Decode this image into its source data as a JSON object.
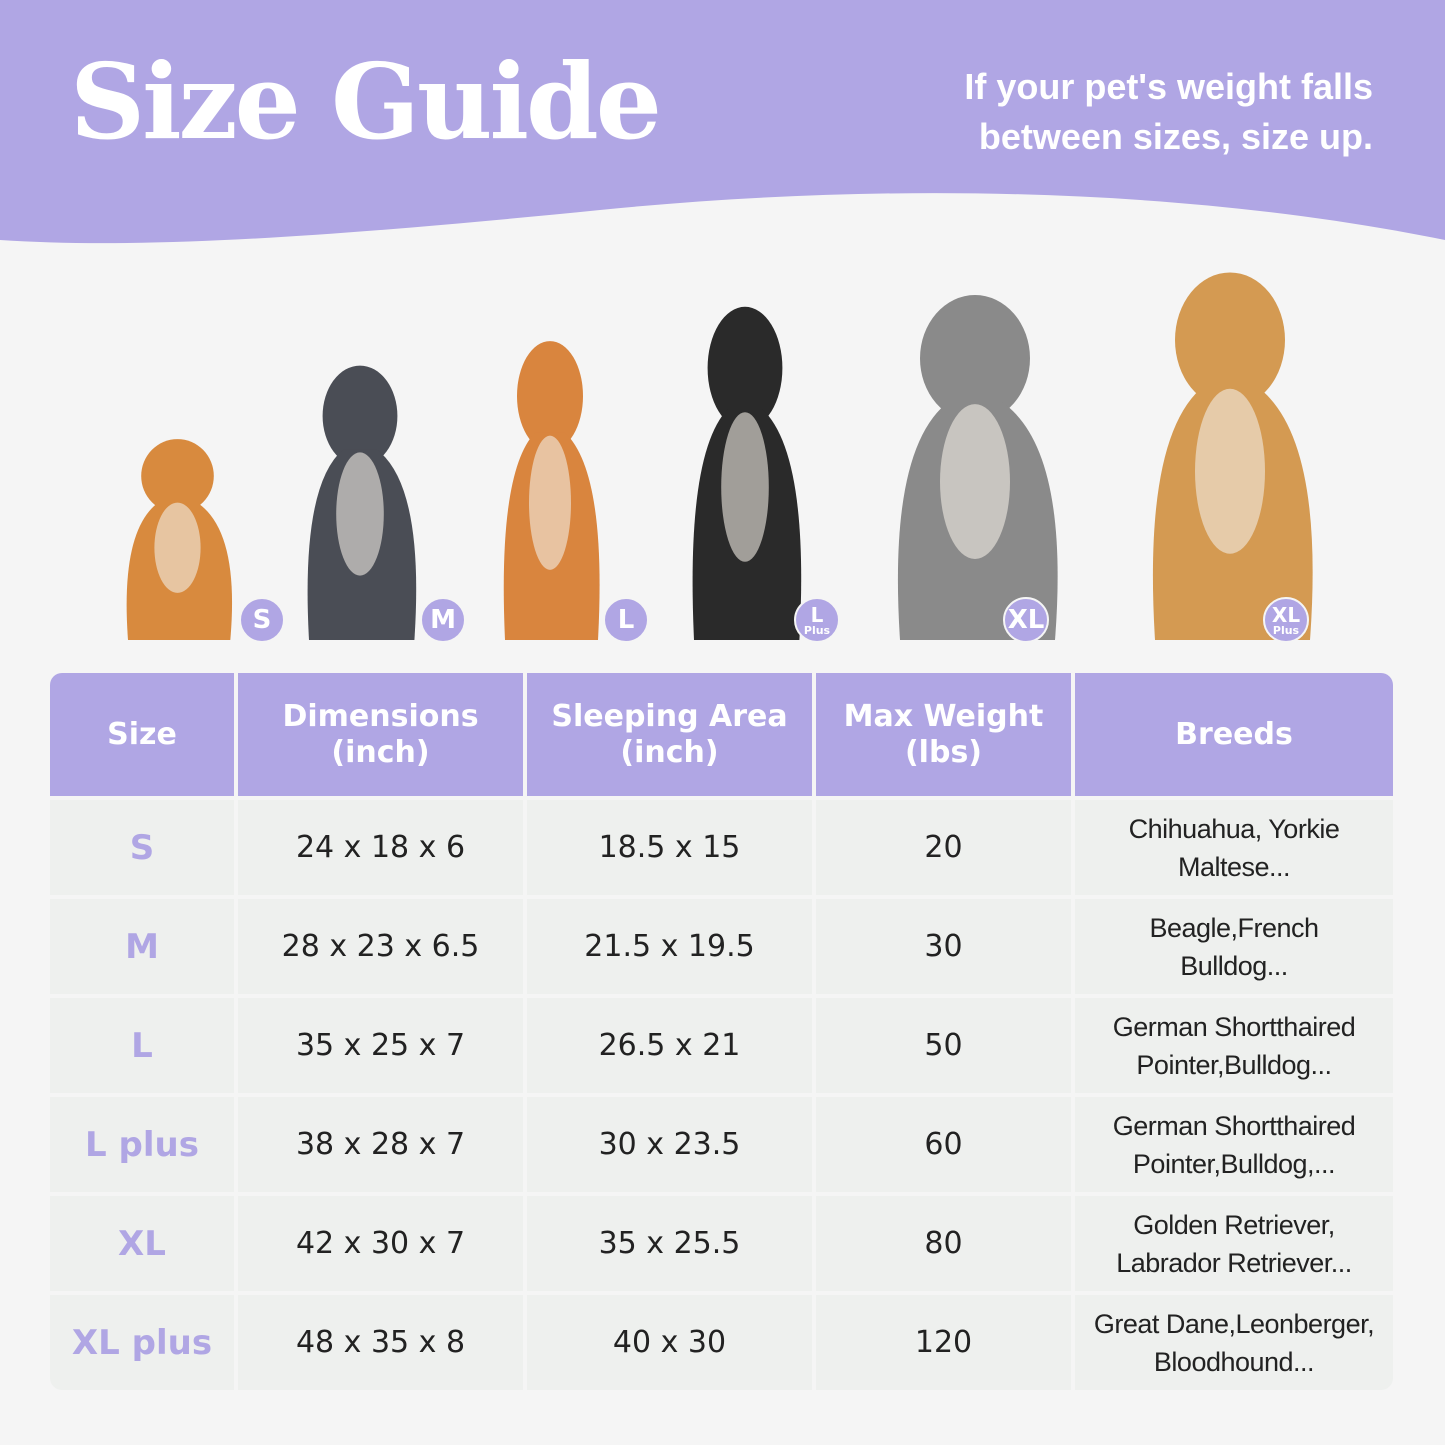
{
  "header": {
    "title": "Size Guide",
    "subtitle_line1": "If your pet's weight falls",
    "subtitle_line2": "between sizes, size up."
  },
  "colors": {
    "accent": "#b0a6e4",
    "cell": "#eef0ee",
    "background": "#f5f5f5"
  },
  "dogs": [
    {
      "badge": "S",
      "sub": "",
      "color": "#d88a3e"
    },
    {
      "badge": "M",
      "sub": "",
      "color": "#4a4d55"
    },
    {
      "badge": "L",
      "sub": "",
      "color": "#d9853e"
    },
    {
      "badge": "L",
      "sub": "Plus",
      "color": "#2a2a2a"
    },
    {
      "badge": "XL",
      "sub": "",
      "color": "#8a8a8a"
    },
    {
      "badge": "XL",
      "sub": "Plus",
      "color": "#d49a52"
    }
  ],
  "table": {
    "headers": [
      [
        "Size",
        ""
      ],
      [
        "Dimensions",
        "(inch)"
      ],
      [
        "Sleeping Area",
        "(inch)"
      ],
      [
        "Max Weight",
        "(lbs)"
      ],
      [
        "Breeds",
        ""
      ]
    ],
    "rows": [
      {
        "size": "S",
        "dimensions": "24 x 18 x 6",
        "sleeping": "18.5 x 15",
        "weight": "20",
        "breeds1": "Chihuahua, Yorkie",
        "breeds2": "Maltese..."
      },
      {
        "size": "M",
        "dimensions": "28 x 23 x 6.5",
        "sleeping": "21.5 x 19.5",
        "weight": "30",
        "breeds1": "Beagle,French",
        "breeds2": "Bulldog..."
      },
      {
        "size": "L",
        "dimensions": "35 x 25 x 7",
        "sleeping": "26.5 x 21",
        "weight": "50",
        "breeds1": "German Shortthaired",
        "breeds2": "Pointer,Bulldog..."
      },
      {
        "size": "L plus",
        "dimensions": "38 x 28 x 7",
        "sleeping": "30 x 23.5",
        "weight": "60",
        "breeds1": "German Shortthaired",
        "breeds2": "Pointer,Bulldog,..."
      },
      {
        "size": "XL",
        "dimensions": "42 x 30 x 7",
        "sleeping": "35 x 25.5",
        "weight": "80",
        "breeds1": "Golden Retriever,",
        "breeds2": "Labrador Retriever..."
      },
      {
        "size": "XL plus",
        "dimensions": "48 x 35 x 8",
        "sleeping": "40 x 30",
        "weight": "120",
        "breeds1": "Great Dane,Leonberger,",
        "breeds2": "Bloodhound..."
      }
    ]
  }
}
